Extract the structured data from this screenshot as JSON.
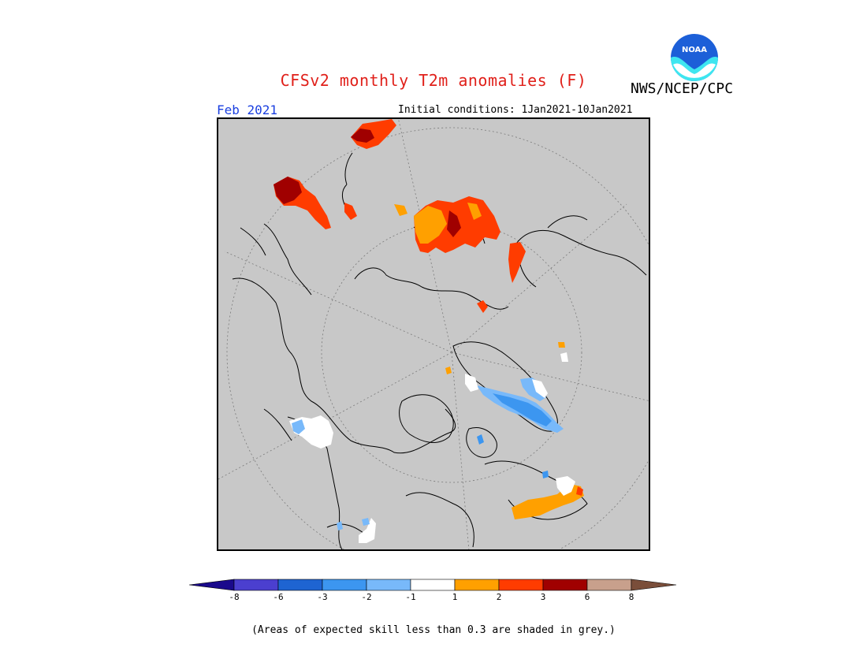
{
  "title": "CFSv2 monthly T2m anomalies (F)",
  "agency": "NWS/NCEP/CPC",
  "logo_text": "NOAA",
  "month": "Feb 2021",
  "initial_conditions": "Initial conditions: 1Jan2021-10Jan2021",
  "footnote": "(Areas of expected skill less than 0.3 are shaded in grey.)",
  "colors": {
    "skill_grey": "#c8c8c8",
    "title_red": "#e0201a",
    "month_blue": "#1a3fe0"
  },
  "legend": {
    "ticks": [
      "-8",
      "-6",
      "-3",
      "-2",
      "-1",
      "1",
      "2",
      "3",
      "6",
      "8"
    ],
    "bins": [
      {
        "color": "#1a0a8c"
      },
      {
        "color": "#4b3fcf"
      },
      {
        "color": "#1e64d2"
      },
      {
        "color": "#3c96f0"
      },
      {
        "color": "#78b9fa"
      },
      {
        "color": "#ffffff"
      },
      {
        "color": "#ffa000"
      },
      {
        "color": "#ff3c00"
      },
      {
        "color": "#a00000"
      },
      {
        "color": "#c8a08c"
      },
      {
        "color": "#7a4e3a"
      }
    ]
  }
}
